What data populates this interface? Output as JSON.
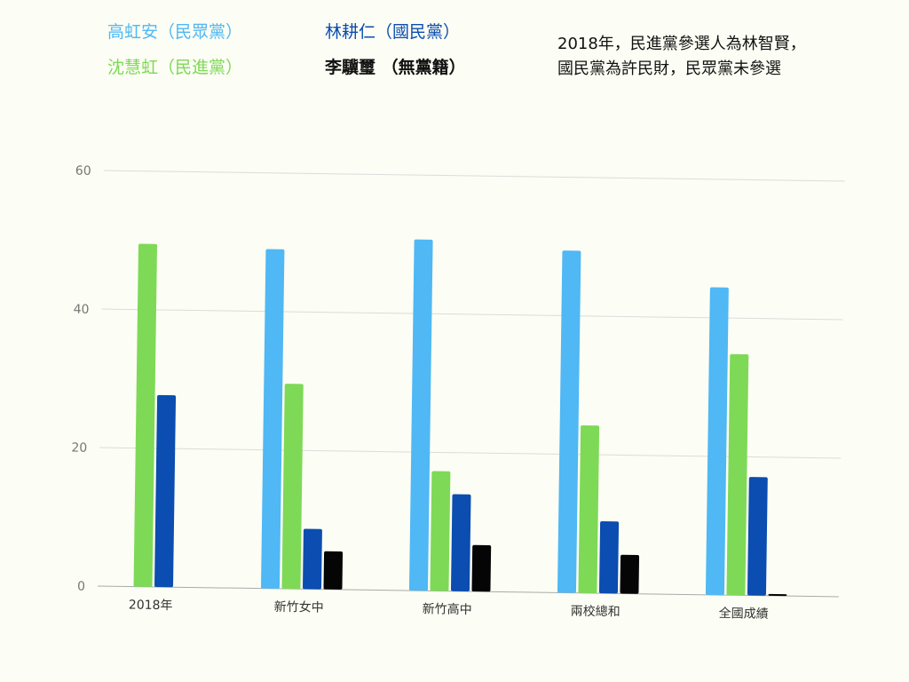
{
  "legend": [
    "高虹安（民眾黨）",
    "林耕仁（國民黨）",
    "沈慧虹（民進黨）",
    "李驥璽 （無黨籍）"
  ],
  "note": {
    "line1": "2018年，民進黨參選人為林智賢，",
    "line2": "國民黨為許民財，民眾黨未參選"
  },
  "chart_data": {
    "type": "bar",
    "categories": [
      "2018年",
      "新竹女中",
      "新竹高中",
      "兩校總和",
      "全國成績"
    ],
    "series": [
      {
        "name": "高虹安（民眾黨）",
        "color": "#4fb8f5",
        "values": [
          null,
          49.0,
          50.7,
          49.4,
          44.4
        ]
      },
      {
        "name": "沈慧虹（民進黨）",
        "color": "#7ed957",
        "values": [
          49.5,
          29.6,
          17.3,
          24.2,
          34.8
        ]
      },
      {
        "name": "林耕仁（國民黨）",
        "color": "#0b4db0",
        "values": [
          27.7,
          8.7,
          14.0,
          10.4,
          17.1
        ]
      },
      {
        "name": "李驥璽 （無黨籍）",
        "color": "#050505",
        "values": [
          null,
          5.5,
          6.7,
          5.6,
          0
        ]
      }
    ],
    "yticks": [
      0,
      20,
      40,
      60
    ],
    "ylim": [
      0,
      60
    ],
    "grid": true
  }
}
